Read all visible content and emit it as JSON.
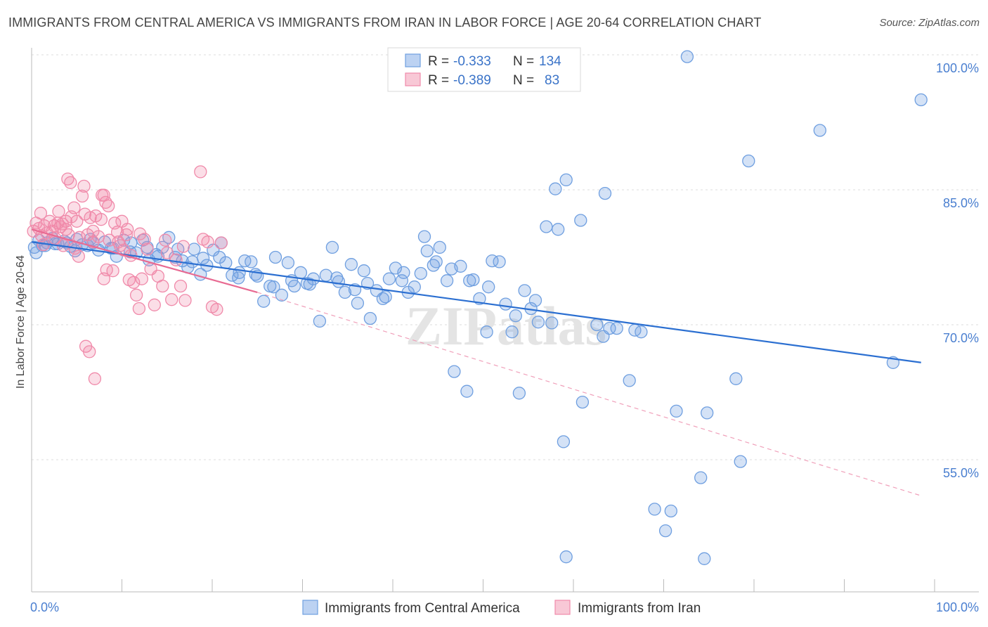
{
  "title": "IMMIGRANTS FROM CENTRAL AMERICA VS IMMIGRANTS FROM IRAN IN LABOR FORCE | AGE 20-64 CORRELATION CHART",
  "source": "Source: ZipAtlas.com",
  "colors": {
    "blue": "#6f9fe0",
    "blue_line": "#2b6fd1",
    "pink": "#f08aaa",
    "pink_line": "#e86a92",
    "tick": "#4a7fd0"
  },
  "legend": {
    "rows": [
      {
        "r_label": "R =",
        "r_value": "-0.333",
        "n_label": "N =",
        "n_value": "134"
      },
      {
        "r_label": "R =",
        "r_value": "-0.389",
        "n_label": "N =",
        "n_value": "83"
      }
    ]
  },
  "watermark": "ZIPatlas",
  "chart_data": {
    "type": "scatter",
    "ylabel": "In Labor Force | Age 20-64",
    "xlim": [
      0,
      100
    ],
    "ylim": [
      40,
      102
    ],
    "x_ticks": [
      "0.0%",
      "100.0%"
    ],
    "y_ticks": [
      {
        "value": 100,
        "label": "100.0%"
      },
      {
        "value": 85,
        "label": "85.0%"
      },
      {
        "value": 70,
        "label": "70.0%"
      },
      {
        "value": 55,
        "label": "55.0%"
      }
    ],
    "series": [
      {
        "name": "Immigrants from Central America",
        "trend": {
          "x0": 0,
          "y0": 79.2,
          "x1": 98.5,
          "y1": 65.8
        },
        "points": [
          [
            0.3,
            78.6
          ],
          [
            0.8,
            79.4
          ],
          [
            1.2,
            78.8
          ],
          [
            1.7,
            79.1
          ],
          [
            2.3,
            79.6
          ],
          [
            2.9,
            79.0
          ],
          [
            3.6,
            79.3
          ],
          [
            4.3,
            78.7
          ],
          [
            5.0,
            79.5
          ],
          [
            5.6,
            78.9
          ],
          [
            6.2,
            78.8
          ],
          [
            6.8,
            79.1
          ],
          [
            7.4,
            78.3
          ],
          [
            8.1,
            79.2
          ],
          [
            8.8,
            78.5
          ],
          [
            9.4,
            77.6
          ],
          [
            10.2,
            79.4
          ],
          [
            10.9,
            78.1
          ],
          [
            11.6,
            78.0
          ],
          [
            12.3,
            79.4
          ],
          [
            13.0,
            77.2
          ],
          [
            13.8,
            77.8
          ],
          [
            14.5,
            78.6
          ],
          [
            15.2,
            79.7
          ],
          [
            15.9,
            77.5
          ],
          [
            16.7,
            77.1
          ],
          [
            17.3,
            76.4
          ],
          [
            18.0,
            78.4
          ],
          [
            18.7,
            75.6
          ],
          [
            19.4,
            76.6
          ],
          [
            20.1,
            78.3
          ],
          [
            20.8,
            77.5
          ],
          [
            21.5,
            76.9
          ],
          [
            22.2,
            75.5
          ],
          [
            22.9,
            75.2
          ],
          [
            23.6,
            77.1
          ],
          [
            24.3,
            77.0
          ],
          [
            25.0,
            75.4
          ],
          [
            25.7,
            72.6
          ],
          [
            26.4,
            74.3
          ],
          [
            27.0,
            77.5
          ],
          [
            27.7,
            73.3
          ],
          [
            28.4,
            76.9
          ],
          [
            29.1,
            74.3
          ],
          [
            29.8,
            75.8
          ],
          [
            30.5,
            74.6
          ],
          [
            31.2,
            75.1
          ],
          [
            31.9,
            70.4
          ],
          [
            32.6,
            75.5
          ],
          [
            33.3,
            78.6
          ],
          [
            34.0,
            74.8
          ],
          [
            34.7,
            73.6
          ],
          [
            35.4,
            76.7
          ],
          [
            36.1,
            72.4
          ],
          [
            36.8,
            76.0
          ],
          [
            37.5,
            70.7
          ],
          [
            38.2,
            73.8
          ],
          [
            38.9,
            72.9
          ],
          [
            39.6,
            75.1
          ],
          [
            40.3,
            76.3
          ],
          [
            41.0,
            74.9
          ],
          [
            41.7,
            73.6
          ],
          [
            42.4,
            74.2
          ],
          [
            43.1,
            75.7
          ],
          [
            43.8,
            78.2
          ],
          [
            44.5,
            76.6
          ],
          [
            45.2,
            78.6
          ],
          [
            46.0,
            74.9
          ],
          [
            46.8,
            64.8
          ],
          [
            47.5,
            76.5
          ],
          [
            48.2,
            62.6
          ],
          [
            48.9,
            75.0
          ],
          [
            49.6,
            72.9
          ],
          [
            50.4,
            69.2
          ],
          [
            51.0,
            77.1
          ],
          [
            51.8,
            77.0
          ],
          [
            52.5,
            72.3
          ],
          [
            53.2,
            69.2
          ],
          [
            54.0,
            62.4
          ],
          [
            54.6,
            73.8
          ],
          [
            55.3,
            71.8
          ],
          [
            56.1,
            70.3
          ],
          [
            57.0,
            80.9
          ],
          [
            58.0,
            85.1
          ],
          [
            58.3,
            80.6
          ],
          [
            58.9,
            57.0
          ],
          [
            59.2,
            44.2
          ],
          [
            59.2,
            86.1
          ],
          [
            60.8,
            81.6
          ],
          [
            61.0,
            61.4
          ],
          [
            62.6,
            70.0
          ],
          [
            63.3,
            68.7
          ],
          [
            63.5,
            84.6
          ],
          [
            64.0,
            69.6
          ],
          [
            64.8,
            69.6
          ],
          [
            66.2,
            63.8
          ],
          [
            66.8,
            69.4
          ],
          [
            67.5,
            69.2
          ],
          [
            69.0,
            49.5
          ],
          [
            70.2,
            47.1
          ],
          [
            70.8,
            49.3
          ],
          [
            71.4,
            60.4
          ],
          [
            72.6,
            99.8
          ],
          [
            74.1,
            53.0
          ],
          [
            74.5,
            44.0
          ],
          [
            74.8,
            60.2
          ],
          [
            78.0,
            64.0
          ],
          [
            78.5,
            54.8
          ],
          [
            79.4,
            88.2
          ],
          [
            87.3,
            91.6
          ],
          [
            95.4,
            65.8
          ],
          [
            98.5,
            95.0
          ],
          [
            0.5,
            78.0
          ],
          [
            1.5,
            78.8
          ],
          [
            2.6,
            79.0
          ],
          [
            3.9,
            79.1
          ],
          [
            4.8,
            78.2
          ],
          [
            6.5,
            79.5
          ],
          [
            9.0,
            78.5
          ],
          [
            11.0,
            79.1
          ],
          [
            12.8,
            78.6
          ],
          [
            14.0,
            77.6
          ],
          [
            16.2,
            78.4
          ],
          [
            17.8,
            77.0
          ],
          [
            19.0,
            77.4
          ],
          [
            21.0,
            79.1
          ],
          [
            23.0,
            75.8
          ],
          [
            24.8,
            75.6
          ],
          [
            26.8,
            74.2
          ],
          [
            28.8,
            74.9
          ],
          [
            30.8,
            74.5
          ],
          [
            33.8,
            75.2
          ],
          [
            35.8,
            73.9
          ],
          [
            37.2,
            74.6
          ],
          [
            39.2,
            73.1
          ],
          [
            41.2,
            75.8
          ],
          [
            43.5,
            79.8
          ],
          [
            44.8,
            77.0
          ],
          [
            46.5,
            76.2
          ],
          [
            48.5,
            74.9
          ],
          [
            50.6,
            74.2
          ],
          [
            53.6,
            71.0
          ],
          [
            55.8,
            72.7
          ],
          [
            57.6,
            70.2
          ]
        ]
      },
      {
        "name": "Immigrants from Iran",
        "trend": {
          "x0": 0,
          "y0": 80.6,
          "x1": 25,
          "y1": 73.6,
          "dash_x1": 98.5,
          "dash_y1": 51.0
        },
        "points": [
          [
            0.2,
            80.4
          ],
          [
            0.5,
            81.3
          ],
          [
            0.8,
            80.7
          ],
          [
            1.1,
            79.9
          ],
          [
            1.4,
            81.0
          ],
          [
            1.7,
            80.2
          ],
          [
            2.0,
            81.5
          ],
          [
            2.3,
            80.4
          ],
          [
            2.6,
            79.6
          ],
          [
            2.9,
            81.3
          ],
          [
            3.2,
            80.9
          ],
          [
            3.5,
            78.8
          ],
          [
            3.8,
            81.5
          ],
          [
            4.1,
            80.0
          ],
          [
            4.4,
            82.0
          ],
          [
            4.7,
            83.0
          ],
          [
            5.0,
            81.5
          ],
          [
            5.3,
            79.7
          ],
          [
            5.6,
            84.3
          ],
          [
            5.9,
            82.3
          ],
          [
            6.2,
            80.0
          ],
          [
            6.5,
            81.9
          ],
          [
            6.8,
            80.4
          ],
          [
            7.1,
            82.1
          ],
          [
            7.4,
            79.8
          ],
          [
            7.7,
            81.7
          ],
          [
            8.0,
            75.1
          ],
          [
            8.3,
            76.1
          ],
          [
            8.6,
            79.4
          ],
          [
            9.0,
            76.0
          ],
          [
            9.5,
            80.3
          ],
          [
            10.0,
            81.5
          ],
          [
            10.5,
            80.0
          ],
          [
            10.8,
            75.0
          ],
          [
            11.0,
            77.7
          ],
          [
            11.3,
            74.7
          ],
          [
            11.6,
            73.3
          ],
          [
            11.9,
            71.8
          ],
          [
            12.2,
            75.1
          ],
          [
            12.5,
            79.5
          ],
          [
            12.8,
            78.4
          ],
          [
            13.2,
            76.2
          ],
          [
            13.6,
            72.2
          ],
          [
            14.0,
            75.4
          ],
          [
            14.5,
            74.3
          ],
          [
            15.0,
            78.0
          ],
          [
            15.5,
            72.8
          ],
          [
            16.0,
            77.2
          ],
          [
            16.5,
            74.3
          ],
          [
            17.0,
            72.7
          ],
          [
            1.0,
            82.4
          ],
          [
            1.3,
            78.9
          ],
          [
            2.5,
            81.0
          ],
          [
            3.0,
            82.6
          ],
          [
            4.0,
            86.2
          ],
          [
            4.3,
            85.8
          ],
          [
            4.8,
            78.5
          ],
          [
            5.2,
            77.6
          ],
          [
            5.8,
            85.4
          ],
          [
            6.0,
            67.6
          ],
          [
            6.4,
            67.0
          ],
          [
            7.0,
            64.0
          ],
          [
            7.8,
            84.4
          ],
          [
            8.0,
            84.4
          ],
          [
            8.2,
            83.6
          ],
          [
            8.5,
            83.2
          ],
          [
            9.2,
            81.3
          ],
          [
            9.6,
            79.2
          ],
          [
            10.2,
            78.3
          ],
          [
            10.6,
            80.6
          ],
          [
            18.7,
            87.0
          ],
          [
            19.0,
            79.5
          ],
          [
            19.5,
            79.2
          ],
          [
            20.0,
            72.0
          ],
          [
            20.5,
            71.7
          ],
          [
            21.0,
            79.1
          ],
          [
            3.4,
            81.2
          ],
          [
            3.8,
            80.6
          ],
          [
            6.8,
            79.2
          ],
          [
            9.8,
            78.8
          ],
          [
            12.0,
            80.1
          ],
          [
            14.8,
            79.4
          ],
          [
            16.8,
            78.7
          ]
        ]
      }
    ],
    "x_minor_ticks": [
      10,
      20,
      30,
      40,
      50,
      60,
      70,
      80,
      90
    ]
  },
  "bottom_legend": [
    {
      "label": "Immigrants from Central America"
    },
    {
      "label": "Immigrants from Iran"
    }
  ]
}
